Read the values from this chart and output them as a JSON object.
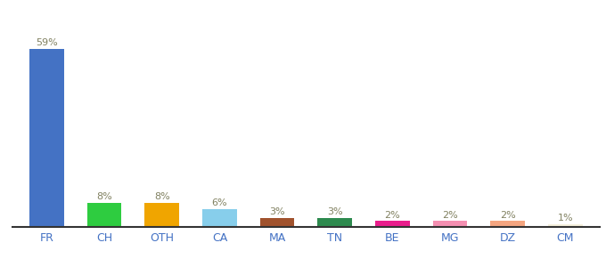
{
  "categories": [
    "FR",
    "CH",
    "OTH",
    "CA",
    "MA",
    "TN",
    "BE",
    "MG",
    "DZ",
    "CM"
  ],
  "values": [
    59,
    8,
    8,
    6,
    3,
    3,
    2,
    2,
    2,
    1
  ],
  "labels": [
    "59%",
    "8%",
    "8%",
    "6%",
    "3%",
    "3%",
    "2%",
    "2%",
    "2%",
    "1%"
  ],
  "bar_colors": [
    "#4472c4",
    "#2ecc40",
    "#f0a500",
    "#87ceeb",
    "#a0522d",
    "#2d8a4e",
    "#e91e8c",
    "#f48fb1",
    "#f4a580",
    "#f5f0dc"
  ],
  "title": "",
  "ylim": [
    0,
    68
  ],
  "background_color": "#ffffff",
  "label_fontsize": 8,
  "tick_fontsize": 9,
  "tick_color": "#4472c4",
  "label_color": "#808060"
}
